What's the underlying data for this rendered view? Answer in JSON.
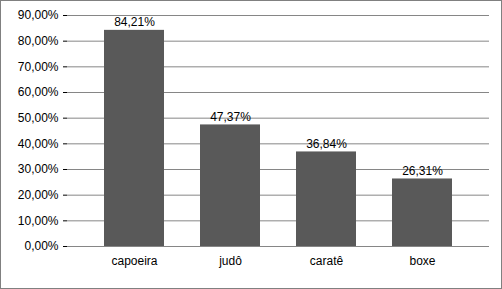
{
  "chart_data": {
    "type": "bar",
    "categories": [
      "capoeira",
      "judô",
      "caratê",
      "boxe"
    ],
    "values": [
      84.21,
      47.37,
      36.84,
      26.31
    ],
    "value_labels": [
      "84,21%",
      "47,37%",
      "36,84%",
      "26,31%"
    ],
    "data_labels": true,
    "color": "#595959",
    "ylim": [
      0,
      90
    ],
    "yticks": [
      {
        "value": 0,
        "label": "0,00%"
      },
      {
        "value": 10,
        "label": "10,00%"
      },
      {
        "value": 20,
        "label": "20,00%"
      },
      {
        "value": 30,
        "label": "30,00%"
      },
      {
        "value": 40,
        "label": "40,00%"
      },
      {
        "value": 50,
        "label": "50,00%"
      },
      {
        "value": 60,
        "label": "60,00%"
      },
      {
        "value": 70,
        "label": "70,00%"
      },
      {
        "value": 80,
        "label": "80,00%"
      },
      {
        "value": 90,
        "label": "90,00%"
      }
    ],
    "grid": true
  }
}
